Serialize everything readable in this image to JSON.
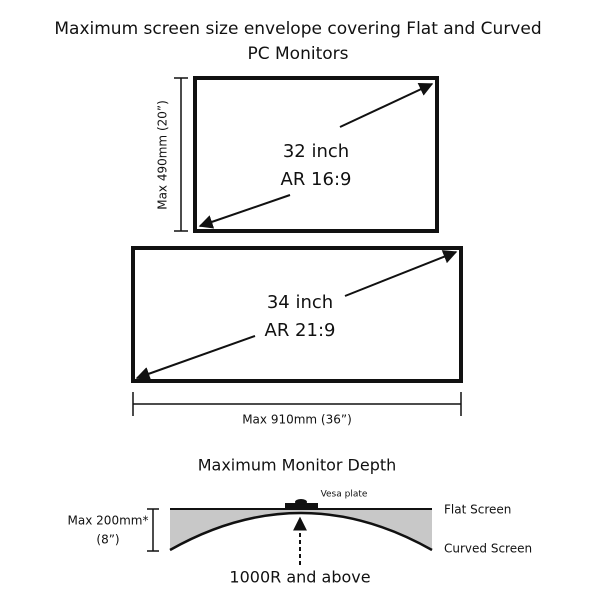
{
  "header": {
    "title_lines": [
      "Maximum screen size envelope covering Flat and Curved",
      "PC Monitors"
    ]
  },
  "screen_32": {
    "size": "32 inch",
    "aspect": "AR 16:9",
    "height_limit": "Max 490mm (20”)"
  },
  "screen_34": {
    "size": "34 inch",
    "aspect": "AR 21:9",
    "width_limit": "Max 910mm (36”)"
  },
  "depth": {
    "title": "Maximum Monitor Depth",
    "vesa": "Vesa plate",
    "flat": "Flat Screen",
    "curved": "Curved Screen",
    "limit_lines": [
      "Max 200mm*",
      "(8”)"
    ],
    "radius": "1000R and above"
  }
}
